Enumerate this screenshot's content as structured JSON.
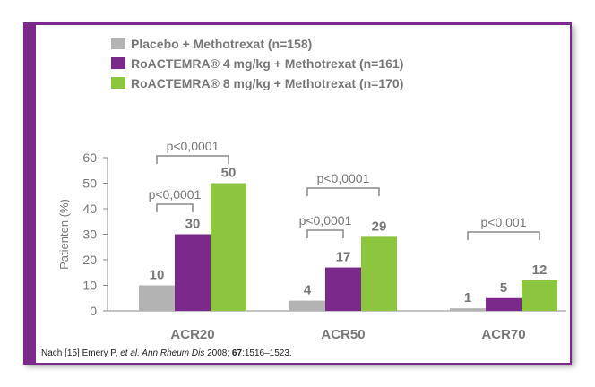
{
  "colors": {
    "frame": "#7b2a8c",
    "placebo": "#b3b3b4",
    "dose4": "#7b2a8c",
    "dose8": "#8cc63f",
    "text": "#777777"
  },
  "footnote": {
    "prefix": "Nach [15] Emery P, ",
    "italic": "et al. Ann Rheum Dis",
    "year": " 2008; ",
    "volume": "67",
    "pages": ":1516–1523."
  },
  "chart_data": {
    "type": "bar",
    "categories": [
      "ACR20",
      "ACR50",
      "ACR70"
    ],
    "series": [
      {
        "name": "Placebo + Methotrexat (n=158)",
        "values": [
          10,
          4,
          1
        ],
        "color": "#b3b3b4"
      },
      {
        "name": "RoACTEMRA® 4 mg/kg + Methotrexat (n=161)",
        "values": [
          30,
          17,
          5
        ],
        "color": "#7b2a8c"
      },
      {
        "name": "RoACTEMRA® 8 mg/kg + Methotrexat (n=170)",
        "values": [
          50,
          29,
          12
        ],
        "color": "#8cc63f"
      }
    ],
    "ylabel": "Patienten (%)",
    "ylim": [
      0,
      60
    ],
    "yticks": [
      0,
      10,
      20,
      30,
      40,
      50,
      60
    ],
    "grid": false,
    "legend_position": "top-left",
    "significance": [
      {
        "category": 0,
        "from": 0,
        "to": 1,
        "label": "p<0,0001"
      },
      {
        "category": 0,
        "from": 0,
        "to": 2,
        "label": "p<0,0001"
      },
      {
        "category": 1,
        "from": 0,
        "to": 1,
        "label": "p<0,0001"
      },
      {
        "category": 1,
        "from": 0,
        "to": 2,
        "label": "p<0,0001"
      },
      {
        "category": 2,
        "from": 0,
        "to": 2,
        "label": "p<0,001"
      }
    ]
  }
}
